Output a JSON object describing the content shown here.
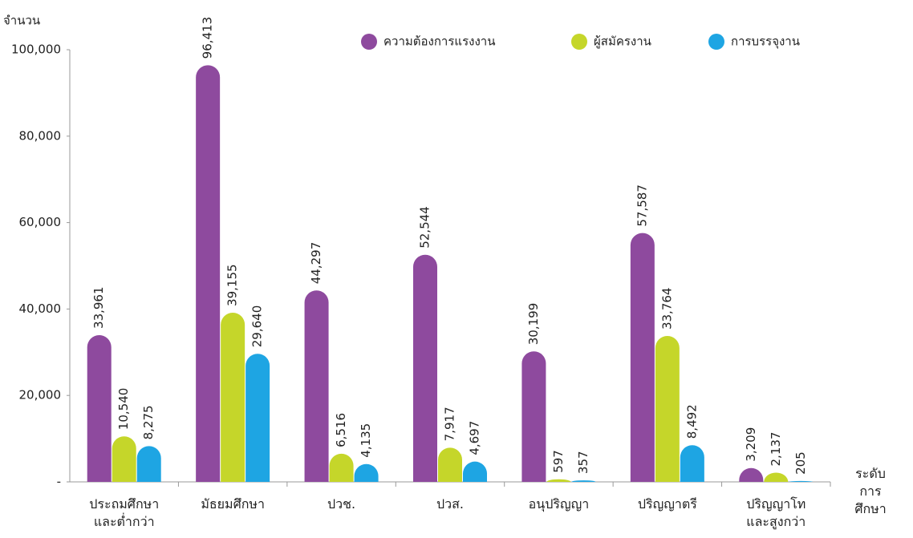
{
  "chart_data": {
    "type": "bar",
    "y_axis_label": "จำนวน",
    "x_axis_label": "ระดับ\nการศึกษา",
    "categories": [
      "ประถมศึกษา\nและต่ำกว่า",
      "มัธยมศึกษา",
      "ปวช.",
      "ปวส.",
      "อนุปริญญา",
      "ปริญญาตรี",
      "ปริญญาโท\nและสูงกว่า"
    ],
    "series": [
      {
        "name": "ความต้องการแรงงาน",
        "color": "#8e4a9e",
        "values": [
          33961,
          96413,
          44297,
          52544,
          30199,
          57587,
          3209
        ],
        "value_labels": [
          "33,961",
          "96,413",
          "44,297",
          "52,544",
          "30,199",
          "57,587",
          "3,209"
        ]
      },
      {
        "name": "ผู้สมัครงาน",
        "color": "#c5d62a",
        "values": [
          10540,
          39155,
          6516,
          7917,
          597,
          33764,
          2137
        ],
        "value_labels": [
          "10,540",
          "39,155",
          "6,516",
          "7,917",
          "597",
          "33,764",
          "2,137"
        ]
      },
      {
        "name": "การบรรจุงาน",
        "color": "#1ea5e3",
        "values": [
          8275,
          29640,
          4135,
          4697,
          357,
          8492,
          205
        ],
        "value_labels": [
          "8,275",
          "29,640",
          "4,135",
          "4,697",
          "357",
          "8,492",
          "205"
        ]
      }
    ],
    "ylim": [
      0,
      100000
    ],
    "yticks": [
      {
        "value": 0,
        "label": "-"
      },
      {
        "value": 20000,
        "label": "20,000"
      },
      {
        "value": 40000,
        "label": "40,000"
      },
      {
        "value": 60000,
        "label": "60,000"
      },
      {
        "value": 80000,
        "label": "80,000"
      },
      {
        "value": 100000,
        "label": "100,000"
      }
    ],
    "legend": "top"
  }
}
